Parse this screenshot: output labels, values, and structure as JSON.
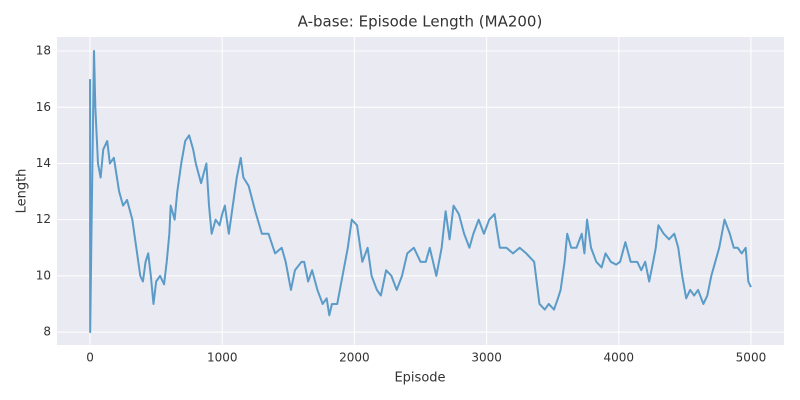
{
  "chart_data": {
    "type": "line",
    "title": "A-base: Episode Length (MA200)",
    "x_label": "Episode",
    "y_label": "Length",
    "x": [
      0,
      1,
      10,
      30,
      40,
      60,
      80,
      100,
      130,
      150,
      180,
      220,
      250,
      280,
      320,
      350,
      380,
      400,
      420,
      440,
      460,
      480,
      500,
      530,
      560,
      580,
      600,
      610,
      640,
      660,
      690,
      720,
      750,
      780,
      800,
      840,
      880,
      900,
      920,
      950,
      980,
      1000,
      1020,
      1050,
      1080,
      1110,
      1140,
      1160,
      1200,
      1250,
      1300,
      1350,
      1400,
      1450,
      1480,
      1520,
      1550,
      1600,
      1620,
      1650,
      1680,
      1720,
      1760,
      1790,
      1810,
      1830,
      1870,
      1910,
      1950,
      1980,
      2020,
      2060,
      2100,
      2130,
      2170,
      2200,
      2240,
      2280,
      2320,
      2360,
      2400,
      2450,
      2500,
      2540,
      2570,
      2620,
      2660,
      2690,
      2720,
      2750,
      2790,
      2830,
      2870,
      2900,
      2940,
      2980,
      3020,
      3060,
      3100,
      3150,
      3200,
      3250,
      3300,
      3360,
      3400,
      3440,
      3470,
      3510,
      3540,
      3560,
      3590,
      3610,
      3640,
      3680,
      3720,
      3740,
      3760,
      3790,
      3830,
      3870,
      3900,
      3940,
      3980,
      4010,
      4050,
      4090,
      4140,
      4170,
      4200,
      4230,
      4260,
      4280,
      4300,
      4340,
      4380,
      4420,
      4450,
      4480,
      4510,
      4540,
      4570,
      4600,
      4640,
      4670,
      4700,
      4730,
      4760,
      4800,
      4840,
      4870,
      4900,
      4930,
      4960,
      4980,
      5000
    ],
    "series": [
      {
        "name": "Length",
        "color": "#5b9bc8",
        "values": [
          17,
          8,
          11.3,
          18,
          16,
          14,
          13.5,
          14.5,
          14.8,
          14,
          14.2,
          13,
          12.5,
          12.7,
          12,
          11,
          10,
          9.8,
          10.5,
          10.8,
          10,
          9,
          9.8,
          10,
          9.7,
          10.5,
          11.5,
          12.5,
          12,
          13,
          14,
          14.8,
          15,
          14.5,
          14,
          13.3,
          14,
          12.5,
          11.5,
          12,
          11.8,
          12.2,
          12.5,
          11.5,
          12.5,
          13.5,
          14.2,
          13.5,
          13.2,
          12.3,
          11.5,
          11.5,
          10.8,
          11,
          10.5,
          9.5,
          10.2,
          10.5,
          10.5,
          9.8,
          10.2,
          9.5,
          9,
          9.2,
          8.6,
          9,
          9,
          10,
          11,
          12,
          11.8,
          10.5,
          11,
          10,
          9.5,
          9.3,
          10.2,
          10,
          9.5,
          10,
          10.8,
          11,
          10.5,
          10.5,
          11,
          10,
          11,
          12.3,
          11.3,
          12.5,
          12.2,
          11.5,
          11,
          11.5,
          12,
          11.5,
          12,
          12.2,
          11,
          11,
          10.8,
          11,
          10.8,
          10.5,
          9,
          8.8,
          9,
          8.8,
          9.2,
          9.5,
          10.5,
          11.5,
          11,
          11,
          11.5,
          10.8,
          12,
          11,
          10.5,
          10.3,
          10.8,
          10.5,
          10.4,
          10.5,
          11.2,
          10.5,
          10.5,
          10.2,
          10.5,
          9.8,
          10.5,
          11,
          11.8,
          11.5,
          11.3,
          11.5,
          11,
          10,
          9.2,
          9.5,
          9.3,
          9.5,
          9,
          9.3,
          10,
          10.5,
          11,
          12,
          11.5,
          11,
          11,
          10.8,
          11,
          9.8,
          9.6
        ]
      }
    ],
    "xlim": [
      -250,
      5250
    ],
    "ylim": [
      7.54,
      18.5
    ],
    "xticks": [
      0,
      1000,
      2000,
      3000,
      4000,
      5000
    ],
    "yticks": [
      8,
      10,
      12,
      14,
      16,
      18
    ],
    "grid": true
  }
}
